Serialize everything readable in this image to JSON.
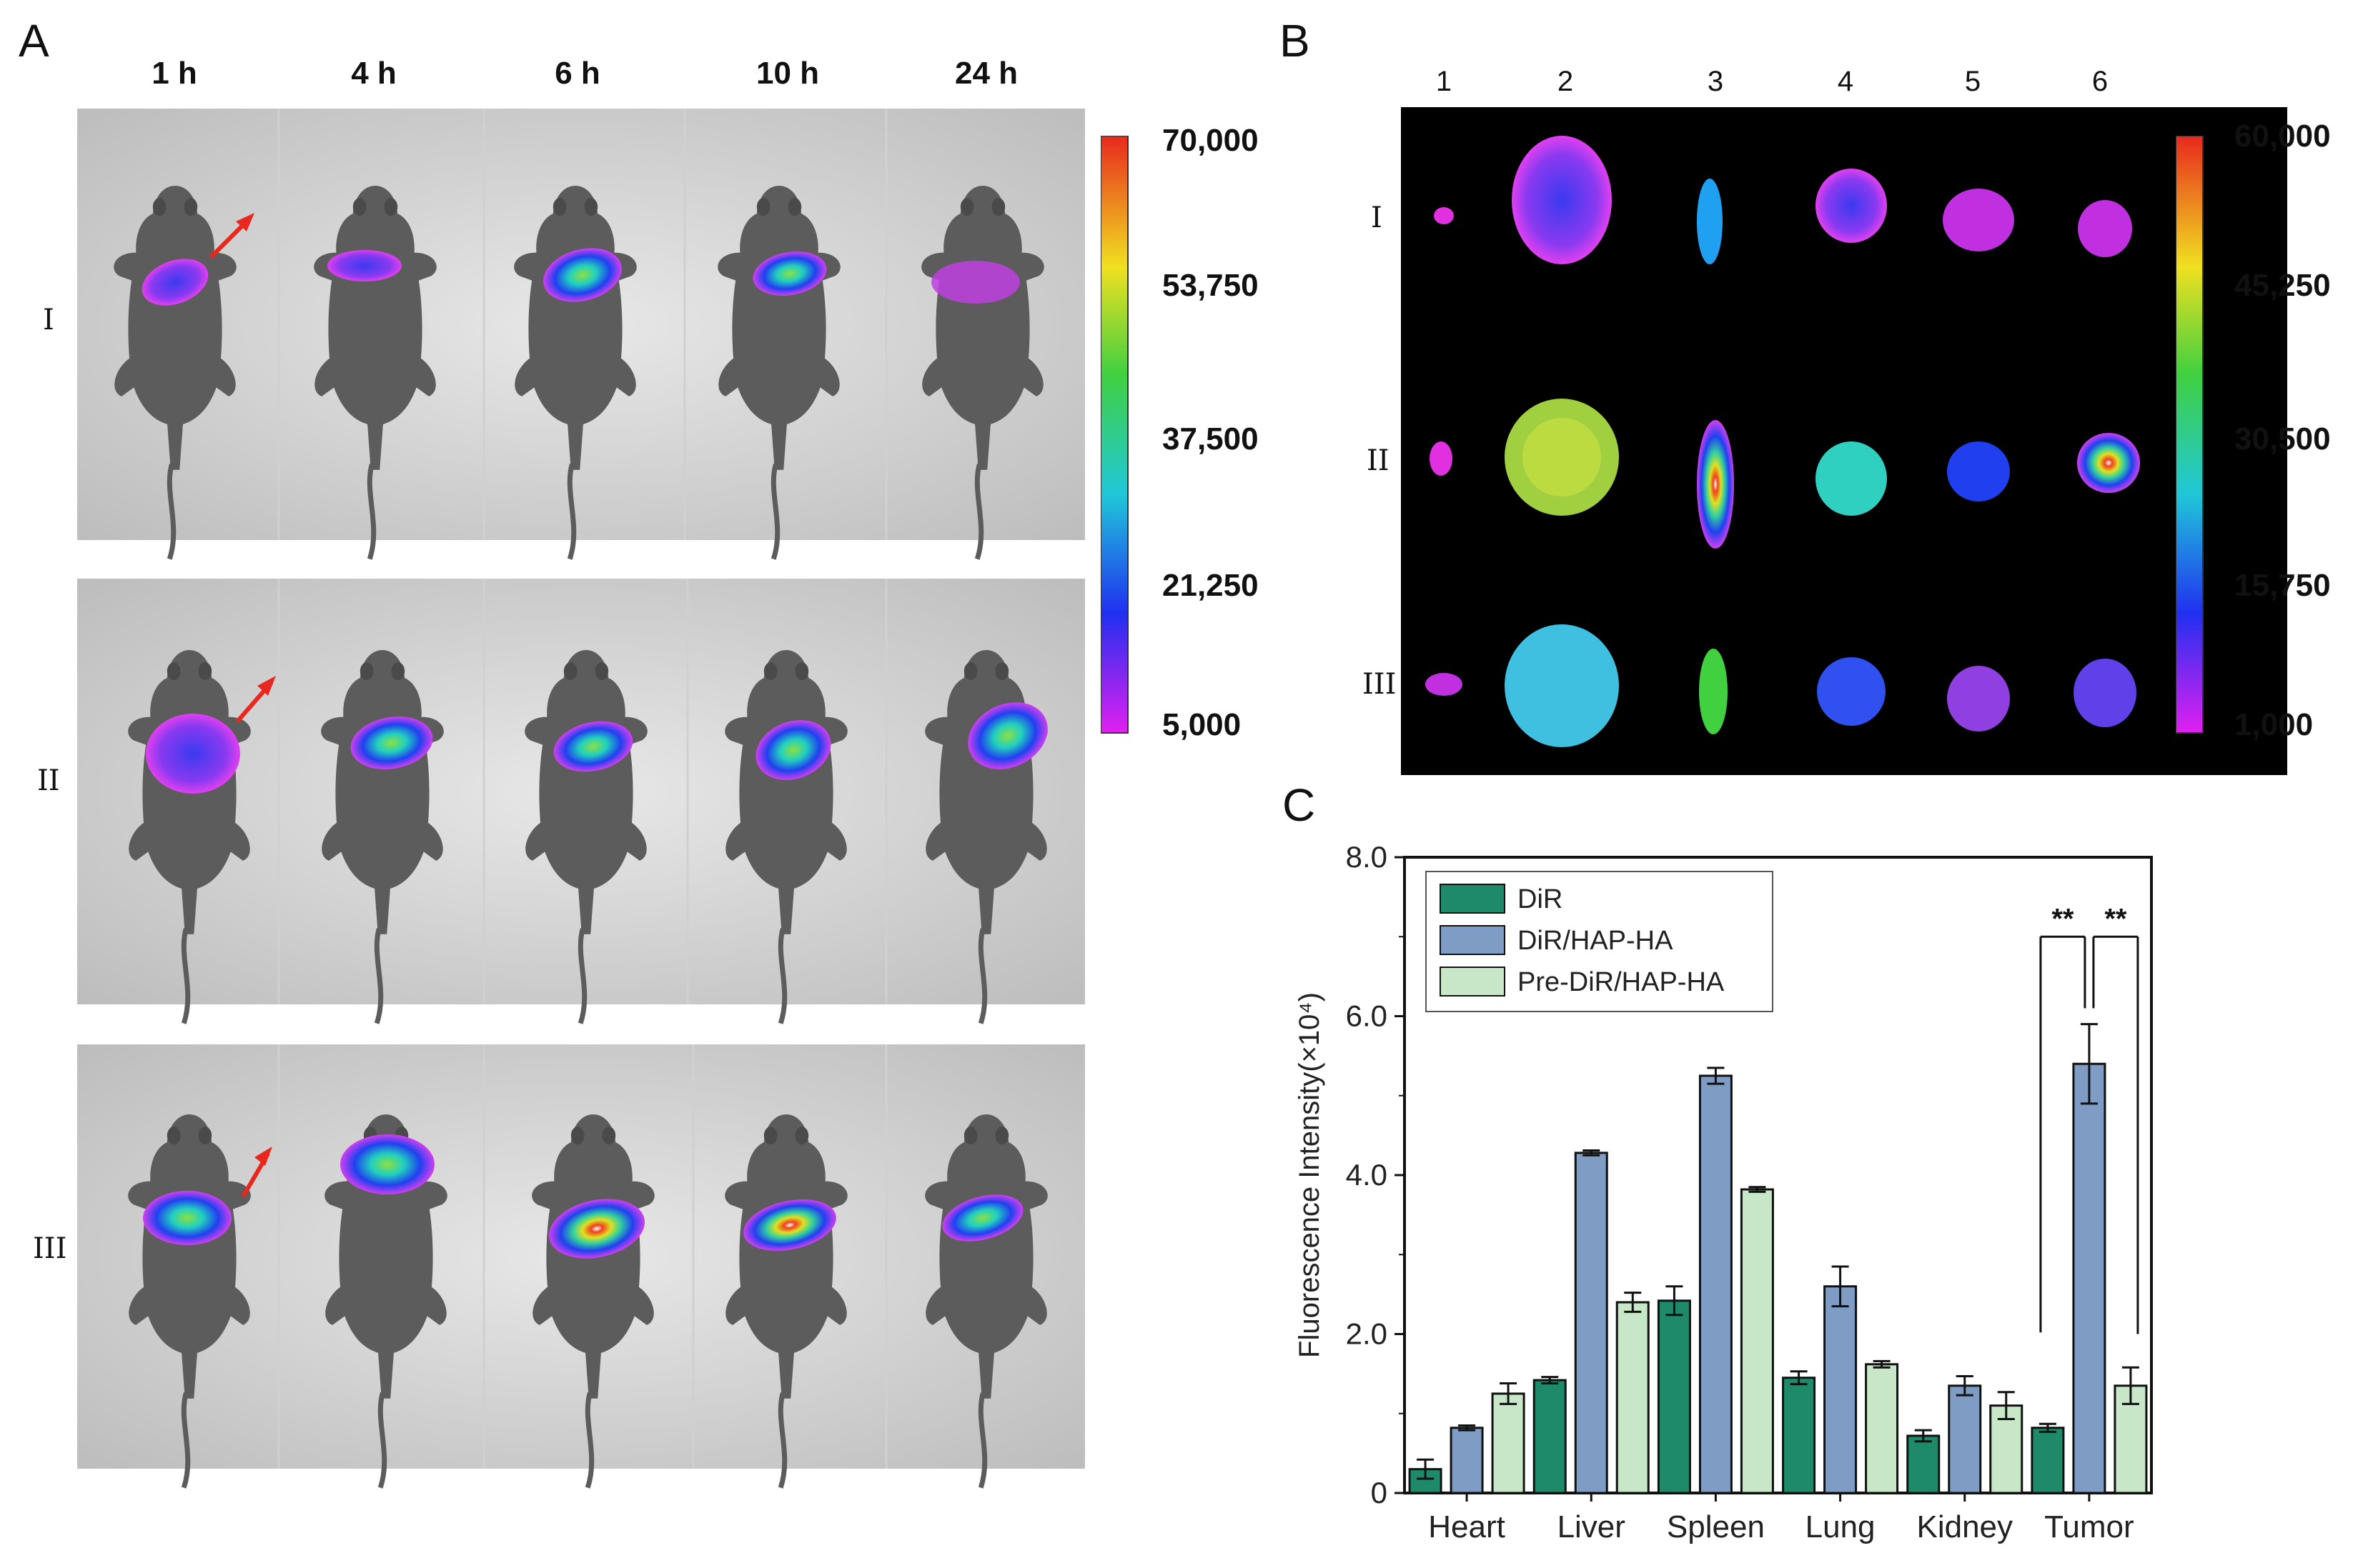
{
  "panel_a": {
    "label": "A",
    "time_points": [
      "1 h",
      "4 h",
      "6 h",
      "10 h",
      "24 h"
    ],
    "groups": [
      "I",
      "II",
      "III"
    ],
    "colorbar_ticks": [
      "70,000",
      "53,750",
      "37,500",
      "21,250",
      "5,000"
    ]
  },
  "panel_b": {
    "label": "B",
    "organ_numbers": [
      "1",
      "2",
      "3",
      "4",
      "5",
      "6"
    ],
    "groups": [
      "I",
      "II",
      "III"
    ],
    "colorbar_ticks": [
      "60,000",
      "45,250",
      "30,500",
      "15,750",
      "1,000"
    ]
  },
  "panel_c": {
    "label": "C"
  },
  "colors": {
    "dir": "#1e8a6a",
    "dir_hap_ha": "#7f9dc4",
    "pre_dir_hap_ha": "#c8e6c8"
  },
  "chart_data": {
    "type": "bar",
    "title": "",
    "xlabel": "",
    "ylabel": "Fluorescence Intensity(×10⁴)",
    "categories": [
      "Heart",
      "Liver",
      "Spleen",
      "Lung",
      "Kidney",
      "Tumor"
    ],
    "ylim": [
      0,
      8
    ],
    "yticks": [
      "0",
      "2.0",
      "4.0",
      "6.0",
      "8.0"
    ],
    "series": [
      {
        "name": "DiR",
        "values": [
          0.3,
          1.42,
          2.42,
          1.45,
          0.72,
          0.82
        ],
        "errors": [
          0.12,
          0.04,
          0.18,
          0.08,
          0.07,
          0.05
        ]
      },
      {
        "name": "DiR/HAP-HA",
        "values": [
          0.82,
          4.28,
          5.25,
          2.6,
          1.35,
          5.4
        ],
        "errors": [
          0.03,
          0.03,
          0.1,
          0.25,
          0.12,
          0.5
        ]
      },
      {
        "name": "Pre-DiR/HAP-HA",
        "values": [
          1.25,
          2.4,
          3.82,
          1.62,
          1.1,
          1.35
        ],
        "errors": [
          0.13,
          0.12,
          0.03,
          0.04,
          0.17,
          0.23
        ]
      }
    ],
    "annotations": [
      "**",
      "**"
    ]
  }
}
